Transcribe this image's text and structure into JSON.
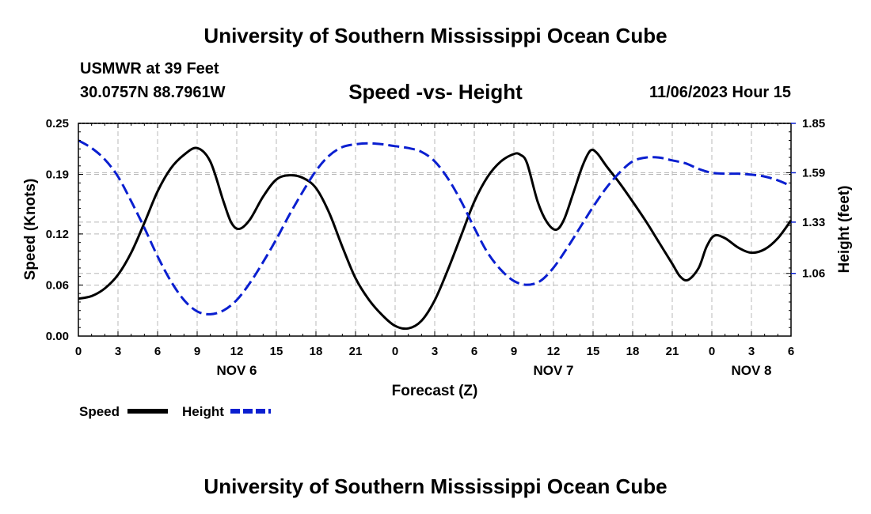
{
  "header": {
    "title": "University of Southern Mississippi Ocean Cube",
    "station": "USMWR at 39 Feet",
    "coords": "30.0757N  88.7961W",
    "date": "11/06/2023 Hour 15"
  },
  "footer": {
    "title": "University of Southern Mississippi Ocean Cube"
  },
  "chart_data": {
    "type": "line",
    "title": "Speed -vs- Height",
    "xlabel": "Forecast (Z)",
    "ylabel_left": "Speed (Knots)",
    "ylabel_right": "Height (feet)",
    "x_range_hours": [
      0,
      54
    ],
    "x_tick_hours": [
      0,
      3,
      6,
      9,
      12,
      15,
      18,
      21,
      24,
      27,
      30,
      33,
      36,
      39,
      42,
      45,
      48,
      51,
      54
    ],
    "x_tick_labels": [
      "0",
      "3",
      "6",
      "9",
      "12",
      "15",
      "18",
      "21",
      "0",
      "3",
      "6",
      "9",
      "12",
      "15",
      "18",
      "21",
      "0",
      "3",
      "6"
    ],
    "day_labels": [
      {
        "label": "NOV 6",
        "hour": 12
      },
      {
        "label": "NOV 7",
        "hour": 36
      },
      {
        "label": "NOV 8",
        "hour": 51
      }
    ],
    "y_left": {
      "min": 0,
      "max": 0.25,
      "ticks": [
        0,
        0.06,
        0.12,
        0.19,
        0.25
      ],
      "tick_labels": [
        "0.00",
        "0.06",
        "0.12",
        "0.19",
        "0.25"
      ]
    },
    "y_right": {
      "min": 0.73,
      "max": 1.85,
      "ticks": [
        1.06,
        1.33,
        1.59,
        1.85
      ],
      "tick_labels": [
        "1.06",
        "1.33",
        "1.59",
        "1.85"
      ]
    },
    "grid": true,
    "legend_position": "bottom-left",
    "series": [
      {
        "name": "Speed",
        "axis": "left",
        "color": "#000000",
        "style": "solid",
        "points": [
          [
            0,
            0.044
          ],
          [
            1,
            0.047
          ],
          [
            2,
            0.056
          ],
          [
            3,
            0.072
          ],
          [
            4,
            0.098
          ],
          [
            5,
            0.133
          ],
          [
            6,
            0.17
          ],
          [
            7,
            0.197
          ],
          [
            8,
            0.213
          ],
          [
            9,
            0.221
          ],
          [
            10,
            0.205
          ],
          [
            11,
            0.158
          ],
          [
            11.6,
            0.133
          ],
          [
            12.2,
            0.126
          ],
          [
            13,
            0.137
          ],
          [
            14,
            0.164
          ],
          [
            15,
            0.184
          ],
          [
            16,
            0.189
          ],
          [
            17,
            0.186
          ],
          [
            18,
            0.174
          ],
          [
            19,
            0.145
          ],
          [
            20,
            0.105
          ],
          [
            21,
            0.068
          ],
          [
            22,
            0.043
          ],
          [
            23,
            0.025
          ],
          [
            24,
            0.012
          ],
          [
            25,
            0.009
          ],
          [
            26,
            0.018
          ],
          [
            27,
            0.042
          ],
          [
            28,
            0.078
          ],
          [
            29,
            0.118
          ],
          [
            30,
            0.158
          ],
          [
            31,
            0.187
          ],
          [
            32,
            0.205
          ],
          [
            33,
            0.214
          ],
          [
            33.5,
            0.213
          ],
          [
            34,
            0.203
          ],
          [
            34.8,
            0.158
          ],
          [
            35.5,
            0.134
          ],
          [
            36.2,
            0.125
          ],
          [
            36.8,
            0.137
          ],
          [
            37.5,
            0.168
          ],
          [
            38.2,
            0.2
          ],
          [
            38.8,
            0.218
          ],
          [
            39.3,
            0.215
          ],
          [
            40,
            0.2
          ],
          [
            41,
            0.18
          ],
          [
            42,
            0.158
          ],
          [
            43,
            0.135
          ],
          [
            44,
            0.11
          ],
          [
            45,
            0.085
          ],
          [
            45.6,
            0.07
          ],
          [
            46.2,
            0.066
          ],
          [
            47,
            0.08
          ],
          [
            47.6,
            0.105
          ],
          [
            48.2,
            0.118
          ],
          [
            49,
            0.115
          ],
          [
            50,
            0.104
          ],
          [
            51,
            0.098
          ],
          [
            52,
            0.102
          ],
          [
            53,
            0.115
          ],
          [
            54,
            0.136
          ]
        ]
      },
      {
        "name": "Height",
        "axis": "right",
        "color": "#0a1fd0",
        "style": "dashed",
        "points": [
          [
            0,
            1.76
          ],
          [
            1,
            1.72
          ],
          [
            2,
            1.66
          ],
          [
            3,
            1.57
          ],
          [
            4,
            1.44
          ],
          [
            5,
            1.3
          ],
          [
            6,
            1.15
          ],
          [
            7,
            1.02
          ],
          [
            8,
            0.92
          ],
          [
            9,
            0.86
          ],
          [
            10,
            0.845
          ],
          [
            11,
            0.865
          ],
          [
            12,
            0.92
          ],
          [
            13,
            1.01
          ],
          [
            14,
            1.12
          ],
          [
            15,
            1.24
          ],
          [
            16,
            1.37
          ],
          [
            17,
            1.49
          ],
          [
            18,
            1.6
          ],
          [
            19,
            1.68
          ],
          [
            20,
            1.725
          ],
          [
            21,
            1.74
          ],
          [
            22,
            1.745
          ],
          [
            23,
            1.74
          ],
          [
            24,
            1.73
          ],
          [
            25,
            1.72
          ],
          [
            26,
            1.7
          ],
          [
            27,
            1.65
          ],
          [
            28,
            1.56
          ],
          [
            29,
            1.44
          ],
          [
            30,
            1.3
          ],
          [
            31,
            1.17
          ],
          [
            32,
            1.08
          ],
          [
            33,
            1.02
          ],
          [
            34,
            1.0
          ],
          [
            35,
            1.02
          ],
          [
            36,
            1.09
          ],
          [
            37,
            1.19
          ],
          [
            38,
            1.3
          ],
          [
            39,
            1.41
          ],
          [
            40,
            1.51
          ],
          [
            41,
            1.59
          ],
          [
            42,
            1.65
          ],
          [
            43,
            1.67
          ],
          [
            44,
            1.67
          ],
          [
            45,
            1.655
          ],
          [
            46,
            1.64
          ],
          [
            47,
            1.61
          ],
          [
            48,
            1.59
          ],
          [
            49,
            1.585
          ],
          [
            50,
            1.585
          ],
          [
            51,
            1.58
          ],
          [
            52,
            1.57
          ],
          [
            53,
            1.55
          ],
          [
            54,
            1.52
          ]
        ]
      }
    ]
  }
}
